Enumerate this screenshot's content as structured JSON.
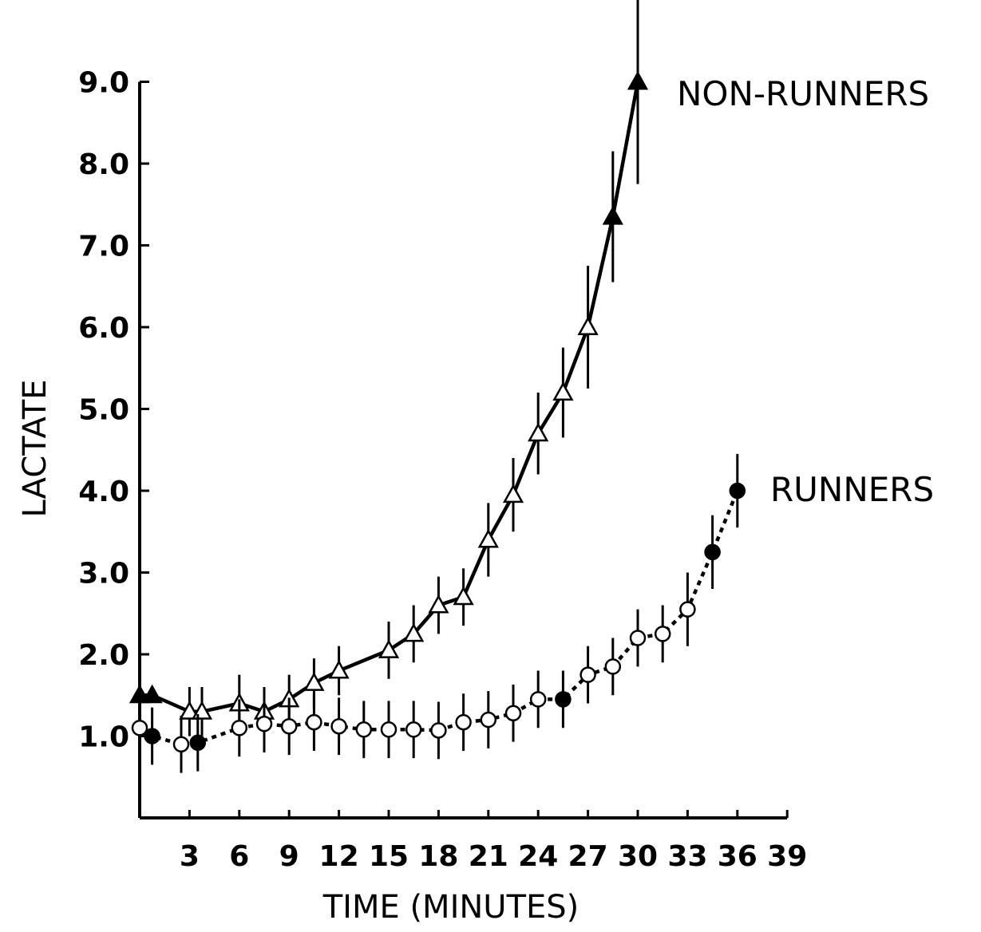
{
  "chart_data": {
    "type": "line",
    "xlabel": "TIME (MINUTES)",
    "ylabel": "LACTATE",
    "xlim": [
      0,
      39
    ],
    "ylim": [
      0,
      9.0
    ],
    "x_ticks": [
      3,
      6,
      9,
      12,
      15,
      18,
      21,
      24,
      27,
      30,
      33,
      36,
      39
    ],
    "x_tick_labels": [
      "3",
      "6",
      "9",
      "12",
      "15",
      "18",
      "21",
      "24",
      "27",
      "30",
      "33",
      "36",
      "39"
    ],
    "y_ticks": [
      1,
      2,
      3,
      4,
      5,
      6,
      7,
      8,
      9
    ],
    "y_tick_labels": [
      "1.0",
      "2.0",
      "3.0",
      "4.0",
      "5.0",
      "6.0",
      "7.0",
      "8.0",
      "9.0"
    ],
    "grid": false,
    "series": [
      {
        "name": "NON-RUNNERS",
        "marker": "triangle",
        "line_style": "solid",
        "x": [
          0,
          0.75,
          3,
          3.75,
          6,
          7.5,
          9,
          10.5,
          12,
          15,
          16.5,
          18,
          19.5,
          21,
          22.5,
          24,
          25.5,
          27,
          28.5,
          30
        ],
        "y": [
          1.5,
          1.5,
          1.3,
          1.3,
          1.4,
          1.3,
          1.45,
          1.65,
          1.8,
          2.05,
          2.25,
          2.6,
          2.7,
          3.4,
          3.95,
          4.7,
          5.2,
          6.0,
          7.35,
          9.0
        ],
        "error": [
          0,
          0,
          0.3,
          0.3,
          0.35,
          0.3,
          0.3,
          0.3,
          0.3,
          0.35,
          0.35,
          0.35,
          0.35,
          0.45,
          0.45,
          0.5,
          0.55,
          0.75,
          0.8,
          1.25
        ]
      },
      {
        "name": "RUNNERS",
        "marker": "circle",
        "line_style": "dotted",
        "x": [
          0,
          0.75,
          2.5,
          3.5,
          6,
          7.5,
          9,
          10.5,
          12,
          13.5,
          15,
          16.5,
          18,
          19.5,
          21,
          22.5,
          24,
          25.5,
          27,
          28.5,
          30,
          31.5,
          33,
          34.5,
          36
        ],
        "y": [
          1.1,
          1.0,
          0.9,
          0.92,
          1.1,
          1.15,
          1.12,
          1.17,
          1.12,
          1.08,
          1.08,
          1.08,
          1.07,
          1.17,
          1.2,
          1.28,
          1.45,
          1.45,
          1.75,
          1.85,
          2.2,
          2.25,
          2.55,
          3.25,
          4.0
        ]
      }
    ]
  }
}
